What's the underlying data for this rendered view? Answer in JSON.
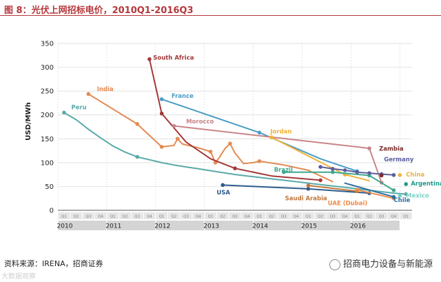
{
  "header": {
    "title": "图 8：光伏上网招标电价，2010Q1-2016Q3"
  },
  "footer": {
    "source": "资料来源：IRENA，招商证券",
    "brand": "招商电力设备与新能源",
    "watermark": "大数据观察"
  },
  "chart_data": {
    "type": "line",
    "ylabel": "USD/MWh",
    "ylim": [
      0,
      350
    ],
    "yticks": [
      0,
      50,
      100,
      150,
      200,
      250,
      300,
      350
    ],
    "quarter_labels": [
      "Q1",
      "Q2",
      "Q3",
      "Q4"
    ],
    "years": [
      "2010",
      "2011",
      "2012",
      "2013",
      "2014",
      "2015",
      "2016"
    ],
    "grid": true,
    "series": [
      {
        "name": "Peru",
        "color": "#5aa9a9",
        "smooth": true,
        "points": [
          [
            0,
            205
          ],
          [
            1,
            190
          ],
          [
            2,
            170
          ],
          [
            3,
            152
          ],
          [
            4,
            135
          ],
          [
            5,
            122
          ],
          [
            6,
            112
          ],
          [
            7,
            106
          ],
          [
            8,
            100
          ],
          [
            9,
            95
          ],
          [
            10,
            91
          ],
          [
            11,
            87
          ],
          [
            12,
            83
          ],
          [
            13,
            79
          ],
          [
            14,
            75
          ],
          [
            15,
            72
          ],
          [
            16,
            69
          ],
          [
            17,
            66
          ],
          [
            18,
            63
          ],
          [
            19,
            60
          ],
          [
            20,
            57
          ],
          [
            21,
            54
          ],
          [
            22,
            51
          ],
          [
            23,
            48
          ],
          [
            24,
            45
          ],
          [
            25,
            42
          ],
          [
            26,
            39
          ],
          [
            27,
            36
          ],
          [
            28,
            34
          ]
        ],
        "markers": [
          [
            0,
            205
          ],
          [
            6,
            112
          ],
          [
            28,
            34
          ]
        ]
      },
      {
        "name": "India",
        "color": "#e48a52",
        "points": [
          [
            2,
            244
          ],
          [
            6,
            181
          ],
          [
            8,
            133
          ],
          [
            9,
            136
          ],
          [
            9.3,
            150
          ],
          [
            9.7,
            139
          ],
          [
            11,
            131
          ],
          [
            12,
            123
          ],
          [
            12.4,
            100
          ],
          [
            12.7,
            110
          ],
          [
            13.2,
            130
          ],
          [
            13.6,
            140
          ],
          [
            14,
            120
          ],
          [
            14.7,
            98
          ],
          [
            15.5,
            100
          ],
          [
            16,
            103
          ],
          [
            18,
            95
          ],
          [
            20,
            84
          ],
          [
            22,
            60
          ]
        ],
        "markers": [
          [
            2,
            244
          ],
          [
            6,
            181
          ],
          [
            8,
            133
          ],
          [
            9.3,
            150
          ],
          [
            12,
            123
          ],
          [
            12.4,
            100
          ],
          [
            13.6,
            140
          ],
          [
            16,
            103
          ]
        ]
      },
      {
        "name": "South Africa",
        "color": "#a33838",
        "points": [
          [
            7,
            317
          ],
          [
            8,
            203
          ],
          [
            10,
            143
          ],
          [
            12,
            108
          ],
          [
            14,
            88
          ],
          [
            17,
            72
          ],
          [
            21,
            63
          ]
        ],
        "markers": [
          [
            7,
            317
          ],
          [
            8,
            203
          ],
          [
            14,
            88
          ],
          [
            21,
            63
          ]
        ]
      },
      {
        "name": "France",
        "color": "#4a9cc5",
        "points": [
          [
            8,
            233
          ],
          [
            16,
            163
          ],
          [
            21,
            108
          ],
          [
            24,
            82
          ]
        ],
        "markers": [
          [
            8,
            233
          ],
          [
            16,
            163
          ],
          [
            24,
            82
          ]
        ]
      },
      {
        "name": "Morocco",
        "color": "#c98387",
        "points": [
          [
            9,
            177
          ],
          [
            25,
            130
          ],
          [
            26,
            58
          ]
        ],
        "markers": [
          [
            9,
            177
          ],
          [
            25,
            130
          ],
          [
            26,
            58
          ]
        ]
      },
      {
        "name": "Jordan",
        "color": "#f0b23a",
        "points": [
          [
            17,
            153
          ],
          [
            23,
            75
          ],
          [
            25,
            62
          ]
        ],
        "markers": [
          [
            17,
            153
          ],
          [
            23,
            75
          ]
        ]
      },
      {
        "name": "Brazil",
        "color": "#3ea88e",
        "points": [
          [
            18,
            80
          ],
          [
            22,
            80
          ],
          [
            25,
            73
          ],
          [
            27,
            42
          ]
        ],
        "markers": [
          [
            18,
            80
          ],
          [
            22,
            80
          ],
          [
            25,
            73
          ],
          [
            27,
            42
          ]
        ]
      },
      {
        "name": "USA",
        "color": "#2e5d8c",
        "points": [
          [
            13,
            53
          ],
          [
            20,
            45
          ],
          [
            25,
            36
          ]
        ],
        "markers": [
          [
            13,
            53
          ],
          [
            20,
            45
          ],
          [
            25,
            36
          ]
        ]
      },
      {
        "name": "Saudi Arabia",
        "color": "#c0783c",
        "points": [
          [
            20,
            52
          ],
          [
            24,
            40
          ]
        ],
        "markers": [
          [
            20,
            52
          ],
          [
            24,
            40
          ]
        ]
      },
      {
        "name": "UAE (Dubai)",
        "color": "#f08a45",
        "points": [
          [
            24,
            43
          ],
          [
            27,
            25
          ]
        ],
        "markers": [
          [
            24,
            43
          ],
          [
            27,
            25
          ]
        ]
      },
      {
        "name": "Germany",
        "color": "#5b5f9e",
        "points": [
          [
            21,
            91
          ],
          [
            22,
            87
          ],
          [
            23,
            84
          ],
          [
            24,
            80
          ],
          [
            25,
            78
          ],
          [
            26,
            76
          ],
          [
            27,
            74
          ]
        ],
        "markers": [
          [
            21,
            91
          ],
          [
            22,
            87
          ],
          [
            23,
            84
          ],
          [
            24,
            80
          ],
          [
            25,
            78
          ],
          [
            26,
            76
          ],
          [
            27,
            74
          ]
        ]
      },
      {
        "name": "Zambia",
        "color": "#7a2b2b",
        "points": [
          [
            26,
            73
          ]
        ],
        "markers": [
          [
            26,
            73
          ]
        ]
      },
      {
        "name": "China",
        "color": "#f0b23a",
        "points": [
          [
            27.5,
            74
          ]
        ],
        "markers": [
          [
            27.5,
            74
          ]
        ]
      },
      {
        "name": "Argentina",
        "color": "#1e9a8a",
        "points": [
          [
            28,
            55
          ]
        ],
        "markers": [
          [
            28,
            55
          ]
        ]
      },
      {
        "name": "Mexico",
        "color": "#7ad0c8",
        "points": [
          [
            27.5,
            30
          ]
        ],
        "markers": [
          [
            27.5,
            30
          ]
        ]
      },
      {
        "name": "Chile",
        "color": "#2e6fa0",
        "points": [
          [
            23,
            57
          ],
          [
            27,
            28
          ]
        ],
        "markers": [
          [
            27,
            28
          ]
        ]
      }
    ],
    "labels": [
      {
        "series": "Peru",
        "text": "Peru",
        "x": 0.6,
        "y": 212
      },
      {
        "series": "India",
        "text": "India",
        "x": 2.7,
        "y": 250
      },
      {
        "series": "South Africa",
        "text": "South Africa",
        "x": 7.3,
        "y": 316
      },
      {
        "series": "France",
        "text": "France",
        "x": 8.8,
        "y": 236
      },
      {
        "series": "Morocco",
        "text": "Morocco",
        "x": 10.0,
        "y": 182
      },
      {
        "series": "Jordan",
        "text": "Jordan",
        "x": 16.9,
        "y": 161
      },
      {
        "series": "Brazil",
        "text": "Brazil",
        "x": 17.2,
        "y": 81
      },
      {
        "series": "USA",
        "text": "USA",
        "x": 12.5,
        "y": 33
      },
      {
        "series": "Saudi Arabia",
        "text": "Saudi Arabia",
        "x": 18.1,
        "y": 21
      },
      {
        "series": "UAE (Dubai)",
        "text": "UAE (Dubai)",
        "x": 21.6,
        "y": 11
      },
      {
        "series": "Germany",
        "text": "Germany",
        "x": 26.2,
        "y": 103
      },
      {
        "series": "Zambia",
        "text": "Zambia",
        "x": 25.8,
        "y": 125
      },
      {
        "series": "China",
        "text": "China",
        "x": 28.0,
        "y": 71
      },
      {
        "series": "Argentina",
        "text": "Argentina",
        "x": 28.4,
        "y": 52
      },
      {
        "series": "Mexico",
        "text": "Mexico",
        "x": 28.0,
        "y": 27
      },
      {
        "series": "Chile",
        "text": "Chile",
        "x": 27.0,
        "y": 17
      }
    ]
  }
}
